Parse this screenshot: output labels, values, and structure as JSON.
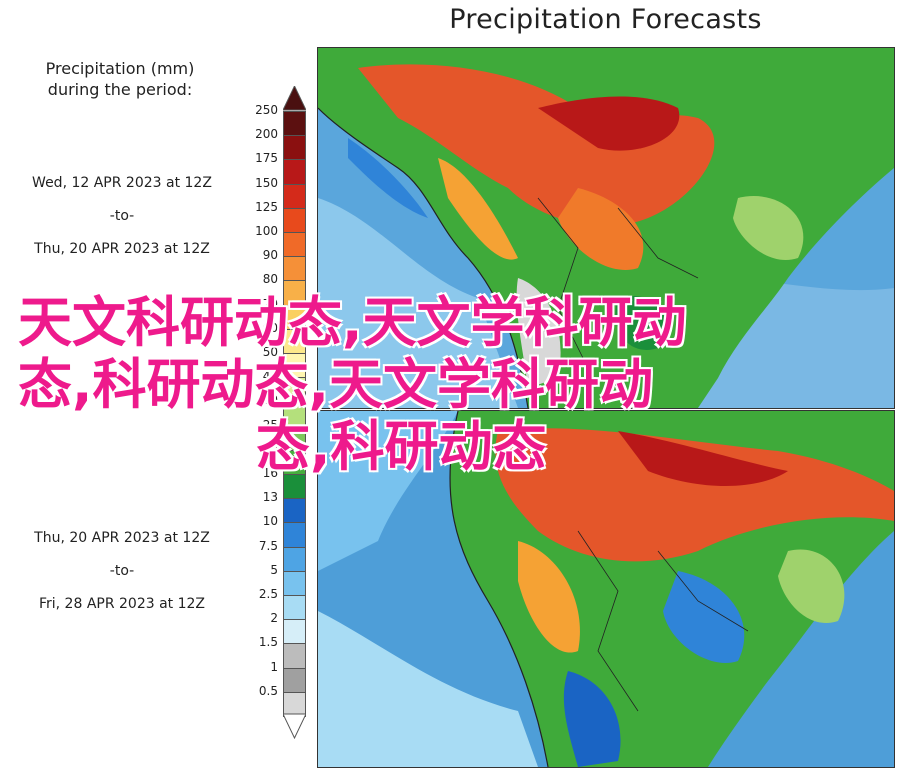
{
  "title": "Precipitation Forecasts",
  "legend": {
    "heading_line1": "Precipitation (mm)",
    "heading_line2": "during the period:",
    "period1": {
      "start": "Wed, 12 APR 2023 at 12Z",
      "sep": "-to-",
      "end": "Thu, 20 APR 2023 at 12Z"
    },
    "period2": {
      "start": "Thu, 20 APR 2023 at 12Z",
      "sep": "-to-",
      "end": "Fri, 28 APR 2023 at 12Z"
    },
    "ticks": [
      "250",
      "200",
      "175",
      "150",
      "125",
      "100",
      "90",
      "80",
      "70",
      "60",
      "50",
      "40",
      "30",
      "25",
      "20",
      "16",
      "13",
      "10",
      "7.5",
      "5",
      "2.5",
      "2",
      "1.5",
      "1",
      "0.5"
    ],
    "colors": [
      "#5c1010",
      "#8b1010",
      "#b81818",
      "#d42a1a",
      "#e84a1c",
      "#f06a28",
      "#f59038",
      "#f8b048",
      "#fad060",
      "#fce88a",
      "#fff6b0",
      "#dff0a0",
      "#b4e07c",
      "#7cc85a",
      "#46ae3e",
      "#1a8f3a",
      "#1a64c4",
      "#2f84d8",
      "#4ea4e4",
      "#78c2ee",
      "#a8dcf4",
      "#d6eef8",
      "#bcbcbc",
      "#a0a0a0",
      "#d8d8d8"
    ]
  },
  "watermark": {
    "line1": "天文科研动态,天文学科研动",
    "line2": "态,科研动态,天文学科研动",
    "line3": "态,科研动态"
  }
}
